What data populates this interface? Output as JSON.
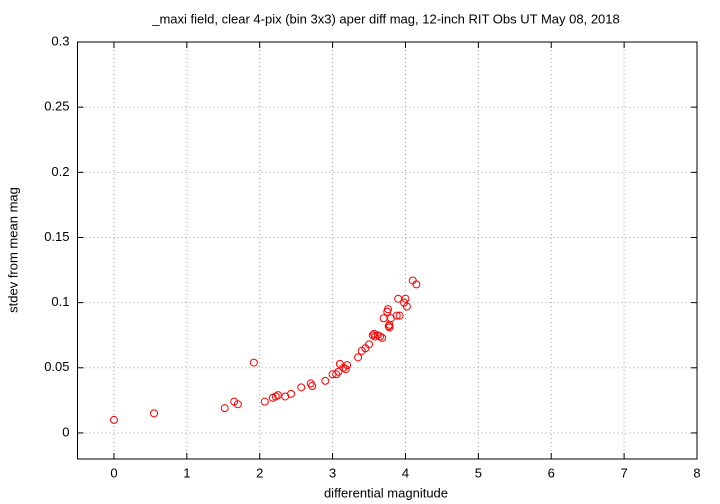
{
  "chart_data": {
    "type": "scatter",
    "title": "_maxi field, clear 4-pix (bin 3x3) aper diff mag,  12-inch RIT Obs UT May 08, 2018",
    "x_label": "differential magnitude",
    "y_label": "stdev from mean mag",
    "xlim": [
      -0.5,
      8
    ],
    "xticks": [
      0,
      1,
      2,
      3,
      4,
      5,
      6,
      7,
      8
    ],
    "ylim": [
      -0.02,
      0.3
    ],
    "yticks": [
      0,
      0.05,
      0.1,
      0.15,
      0.2,
      0.25,
      0.3
    ],
    "grid": true,
    "series": [
      {
        "color": "#ff0000",
        "x": [
          0,
          0.55,
          1.52,
          1.65,
          1.7,
          1.92,
          2.07,
          2.18,
          2.22,
          2.25,
          2.35,
          2.43,
          2.57,
          2.7,
          2.72,
          2.9,
          3.0,
          3.05,
          3.08,
          3.1,
          3.15,
          3.18,
          3.2,
          3.35,
          3.4,
          3.45,
          3.5,
          3.55,
          3.57,
          3.58,
          3.62,
          3.65,
          3.68,
          3.7,
          3.75,
          3.76,
          3.77,
          3.78,
          3.78,
          3.8,
          3.88,
          3.9,
          3.92,
          3.98,
          4.0,
          4.02,
          4.1,
          4.15
        ],
        "values": [
          0.01,
          0.015,
          0.019,
          0.024,
          0.022,
          0.054,
          0.024,
          0.027,
          0.028,
          0.029,
          0.028,
          0.03,
          0.035,
          0.038,
          0.036,
          0.04,
          0.045,
          0.045,
          0.047,
          0.053,
          0.05,
          0.049,
          0.052,
          0.058,
          0.063,
          0.065,
          0.068,
          0.075,
          0.076,
          0.074,
          0.075,
          0.074,
          0.073,
          0.088,
          0.093,
          0.095,
          0.082,
          0.083,
          0.081,
          0.088,
          0.09,
          0.103,
          0.09,
          0.1,
          0.103,
          0.097,
          0.117,
          0.114
        ]
      }
    ]
  }
}
